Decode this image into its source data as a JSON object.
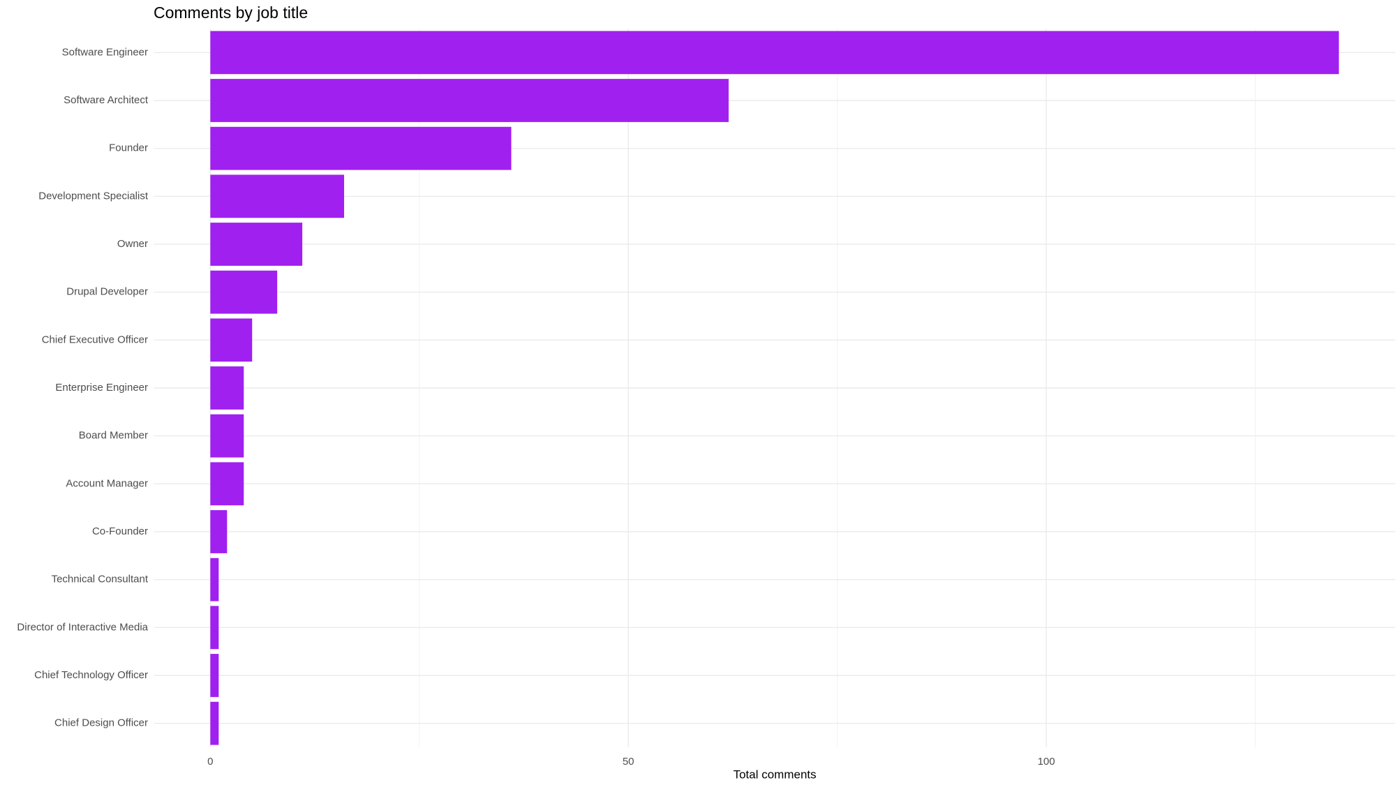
{
  "chart_data": {
    "type": "bar",
    "orientation": "horizontal",
    "title": "Comments by job title",
    "x_label": "Total comments",
    "categories": [
      "Software Engineer",
      "Software Architect",
      "Founder",
      "Development Specialist",
      "Owner",
      "Drupal Developer",
      "Chief Executive Officer",
      "Enterprise Engineer",
      "Board Member",
      "Account Manager",
      "Co-Founder",
      "Technical Consultant",
      "Director of Interactive Media",
      "Chief Technology Officer",
      "Chief Design Officer"
    ],
    "values": [
      135,
      62,
      36,
      16,
      11,
      8,
      5,
      4,
      4,
      4,
      2,
      1,
      1,
      1,
      1
    ],
    "color": "#a020f0",
    "xlim": [
      -6.75,
      141.75
    ],
    "xticks": [
      0,
      50,
      100
    ],
    "minor_xticks": [
      25,
      75,
      125
    ],
    "grid": true
  }
}
